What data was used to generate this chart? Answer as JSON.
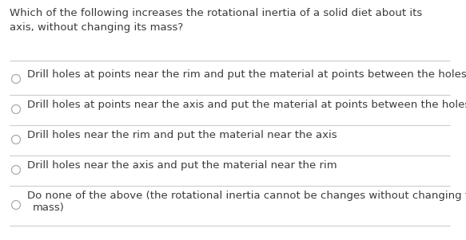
{
  "background_color": "#ffffff",
  "question_line1": "Which of the following increases the rotational inertia of a solid diet about its",
  "question_line2": "axis, without changing its mass?",
  "options": [
    "Drill holes at points near the rim and put the material at points between the holes",
    "Drill holes at points near the axis and put the material at points between the holes",
    "Drill holes near the rim and put the material near the axis",
    "Drill holes near the axis and put the material near the rim",
    "Do none of the above (the rotational inertia cannot be changes without changing the\nmass)"
  ],
  "text_color": "#3a3a3a",
  "circle_color": "#aaaaaa",
  "line_color": "#cccccc",
  "font_size": 9.5,
  "question_font_size": 9.5,
  "fig_width": 5.83,
  "fig_height": 3.01,
  "dpi": 100
}
